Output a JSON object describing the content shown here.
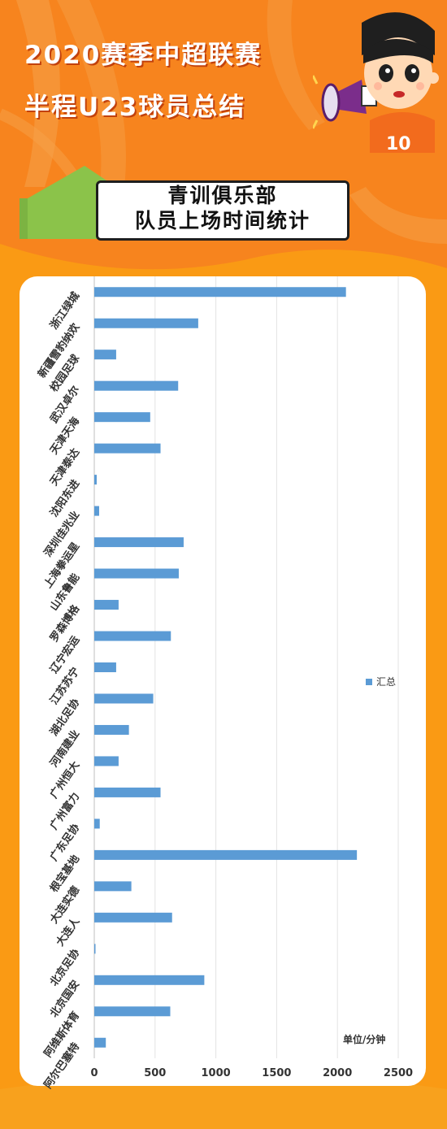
{
  "header": {
    "title_line1": "2020赛季中超联赛",
    "title_line2": "半程U23球员总结",
    "subtitle_line1": "青训俱乐部",
    "subtitle_line2": "队员上场时间统计"
  },
  "mascot": {
    "jersey_number": "10"
  },
  "colors": {
    "bar": "#5b9bd5",
    "background": "#fa9a14",
    "accent_green": "#8bc34a"
  },
  "chart_data": {
    "type": "bar",
    "orientation": "horizontal",
    "categories": [
      "浙江绿城",
      "新疆雪豹纳欢",
      "校园足球",
      "武汉卓尔",
      "天津天海",
      "天津泰达",
      "沈阳东进",
      "深圳佳兆业",
      "上海拳运星",
      "山东鲁能",
      "罗森博格",
      "辽宁宏运",
      "江苏苏宁",
      "湖北足协",
      "河南建业",
      "广州恒大",
      "广州富力",
      "广东足协",
      "根宝基地",
      "大连实德",
      "大连人",
      "北京足协",
      "北京国安",
      "阿维斯体育",
      "阿尔巴塞特"
    ],
    "series": [
      {
        "name": "汇总",
        "values": [
          2070,
          855,
          180,
          690,
          460,
          545,
          20,
          40,
          735,
          695,
          200,
          630,
          180,
          485,
          285,
          200,
          545,
          45,
          2160,
          305,
          640,
          5,
          905,
          625,
          95
        ]
      }
    ],
    "xlim": [
      0,
      2500
    ],
    "xticks": [
      "0",
      "500",
      "1000",
      "1500",
      "2000",
      "2500"
    ],
    "grid": true,
    "legend_position": "right",
    "unit_label": "单位/分钟"
  }
}
